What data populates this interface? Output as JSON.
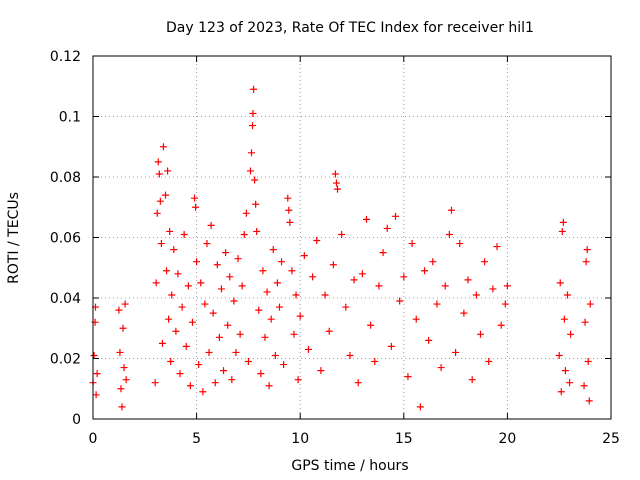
{
  "chart_data": {
    "type": "scatter",
    "title": "Day 123 of 2023, Rate Of TEC Index for receiver hil1",
    "xlabel": "GPS time / hours",
    "ylabel": "ROTI / TECUs",
    "xlim": [
      0,
      25
    ],
    "ylim": [
      0,
      0.12
    ],
    "x_ticks": [
      0,
      5,
      10,
      15,
      20,
      25
    ],
    "x_tick_labels": [
      "0",
      "5",
      "10",
      "15",
      "20",
      "25"
    ],
    "y_ticks": [
      0,
      0.02,
      0.04,
      0.06,
      0.08,
      0.1,
      0.12
    ],
    "y_tick_labels": [
      "0",
      "0.02",
      "0.04",
      "0.06",
      "0.08",
      "0.1",
      "0.12"
    ],
    "grid": true,
    "marker": "+",
    "color": "#ff0000",
    "series": [
      {
        "name": "ROTI",
        "points": [
          [
            0.0,
            0.012
          ],
          [
            0.05,
            0.021
          ],
          [
            0.1,
            0.032
          ],
          [
            0.12,
            0.037
          ],
          [
            0.15,
            0.008
          ],
          [
            0.2,
            0.015
          ],
          [
            1.25,
            0.036
          ],
          [
            1.3,
            0.022
          ],
          [
            1.35,
            0.01
          ],
          [
            1.4,
            0.004
          ],
          [
            1.45,
            0.03
          ],
          [
            1.5,
            0.017
          ],
          [
            1.55,
            0.038
          ],
          [
            1.6,
            0.013
          ],
          [
            3.0,
            0.012
          ],
          [
            3.05,
            0.045
          ],
          [
            3.1,
            0.068
          ],
          [
            3.15,
            0.085
          ],
          [
            3.2,
            0.081
          ],
          [
            3.25,
            0.072
          ],
          [
            3.3,
            0.058
          ],
          [
            3.35,
            0.025
          ],
          [
            3.4,
            0.09
          ],
          [
            3.5,
            0.074
          ],
          [
            3.55,
            0.049
          ],
          [
            3.6,
            0.082
          ],
          [
            3.65,
            0.033
          ],
          [
            3.7,
            0.062
          ],
          [
            3.75,
            0.019
          ],
          [
            3.8,
            0.041
          ],
          [
            3.9,
            0.056
          ],
          [
            4.0,
            0.029
          ],
          [
            4.1,
            0.048
          ],
          [
            4.2,
            0.015
          ],
          [
            4.3,
            0.037
          ],
          [
            4.4,
            0.061
          ],
          [
            4.5,
            0.024
          ],
          [
            4.6,
            0.044
          ],
          [
            4.7,
            0.011
          ],
          [
            4.8,
            0.032
          ],
          [
            4.9,
            0.073
          ],
          [
            4.95,
            0.07
          ],
          [
            5.0,
            0.052
          ],
          [
            5.1,
            0.018
          ],
          [
            5.2,
            0.045
          ],
          [
            5.3,
            0.009
          ],
          [
            5.4,
            0.038
          ],
          [
            5.5,
            0.058
          ],
          [
            5.6,
            0.022
          ],
          [
            5.7,
            0.064
          ],
          [
            5.8,
            0.035
          ],
          [
            5.9,
            0.012
          ],
          [
            6.0,
            0.051
          ],
          [
            6.1,
            0.027
          ],
          [
            6.2,
            0.043
          ],
          [
            6.3,
            0.016
          ],
          [
            6.4,
            0.055
          ],
          [
            6.5,
            0.031
          ],
          [
            6.6,
            0.047
          ],
          [
            6.7,
            0.013
          ],
          [
            6.8,
            0.039
          ],
          [
            6.9,
            0.022
          ],
          [
            7.0,
            0.053
          ],
          [
            7.1,
            0.028
          ],
          [
            7.2,
            0.044
          ],
          [
            7.3,
            0.061
          ],
          [
            7.4,
            0.068
          ],
          [
            7.5,
            0.019
          ],
          [
            7.6,
            0.082
          ],
          [
            7.65,
            0.088
          ],
          [
            7.7,
            0.097
          ],
          [
            7.72,
            0.101
          ],
          [
            7.75,
            0.109
          ],
          [
            7.8,
            0.079
          ],
          [
            7.85,
            0.071
          ],
          [
            7.9,
            0.062
          ],
          [
            8.0,
            0.036
          ],
          [
            8.1,
            0.015
          ],
          [
            8.2,
            0.049
          ],
          [
            8.3,
            0.027
          ],
          [
            8.4,
            0.042
          ],
          [
            8.5,
            0.011
          ],
          [
            8.6,
            0.033
          ],
          [
            8.7,
            0.056
          ],
          [
            8.8,
            0.021
          ],
          [
            8.9,
            0.045
          ],
          [
            9.0,
            0.037
          ],
          [
            9.1,
            0.052
          ],
          [
            9.2,
            0.018
          ],
          [
            9.4,
            0.073
          ],
          [
            9.45,
            0.069
          ],
          [
            9.5,
            0.065
          ],
          [
            9.6,
            0.049
          ],
          [
            9.7,
            0.028
          ],
          [
            9.8,
            0.041
          ],
          [
            9.9,
            0.013
          ],
          [
            10.0,
            0.034
          ],
          [
            10.2,
            0.054
          ],
          [
            10.4,
            0.023
          ],
          [
            10.6,
            0.047
          ],
          [
            10.8,
            0.059
          ],
          [
            11.0,
            0.016
          ],
          [
            11.2,
            0.041
          ],
          [
            11.4,
            0.029
          ],
          [
            11.6,
            0.051
          ],
          [
            11.7,
            0.081
          ],
          [
            11.75,
            0.078
          ],
          [
            11.8,
            0.076
          ],
          [
            12.0,
            0.061
          ],
          [
            12.2,
            0.037
          ],
          [
            12.4,
            0.021
          ],
          [
            12.6,
            0.046
          ],
          [
            12.8,
            0.012
          ],
          [
            13.0,
            0.048
          ],
          [
            13.2,
            0.066
          ],
          [
            13.4,
            0.031
          ],
          [
            13.6,
            0.019
          ],
          [
            13.8,
            0.044
          ],
          [
            14.0,
            0.055
          ],
          [
            14.2,
            0.063
          ],
          [
            14.4,
            0.024
          ],
          [
            14.6,
            0.067
          ],
          [
            14.8,
            0.039
          ],
          [
            15.0,
            0.047
          ],
          [
            15.2,
            0.014
          ],
          [
            15.4,
            0.058
          ],
          [
            15.6,
            0.033
          ],
          [
            15.8,
            0.004
          ],
          [
            16.0,
            0.049
          ],
          [
            16.2,
            0.026
          ],
          [
            16.4,
            0.052
          ],
          [
            16.6,
            0.038
          ],
          [
            16.8,
            0.017
          ],
          [
            17.0,
            0.044
          ],
          [
            17.2,
            0.061
          ],
          [
            17.3,
            0.069
          ],
          [
            17.5,
            0.022
          ],
          [
            17.7,
            0.058
          ],
          [
            17.9,
            0.035
          ],
          [
            18.1,
            0.046
          ],
          [
            18.3,
            0.013
          ],
          [
            18.5,
            0.041
          ],
          [
            18.7,
            0.028
          ],
          [
            18.9,
            0.052
          ],
          [
            19.1,
            0.019
          ],
          [
            19.3,
            0.043
          ],
          [
            19.5,
            0.057
          ],
          [
            19.7,
            0.031
          ],
          [
            19.9,
            0.038
          ],
          [
            20.0,
            0.044
          ],
          [
            22.5,
            0.021
          ],
          [
            22.55,
            0.045
          ],
          [
            22.6,
            0.009
          ],
          [
            22.65,
            0.062
          ],
          [
            22.7,
            0.065
          ],
          [
            22.75,
            0.033
          ],
          [
            22.8,
            0.016
          ],
          [
            22.9,
            0.041
          ],
          [
            23.0,
            0.012
          ],
          [
            23.05,
            0.028
          ],
          [
            23.7,
            0.011
          ],
          [
            23.75,
            0.032
          ],
          [
            23.8,
            0.052
          ],
          [
            23.85,
            0.056
          ],
          [
            23.9,
            0.019
          ],
          [
            23.95,
            0.006
          ],
          [
            24.0,
            0.038
          ]
        ]
      }
    ]
  }
}
